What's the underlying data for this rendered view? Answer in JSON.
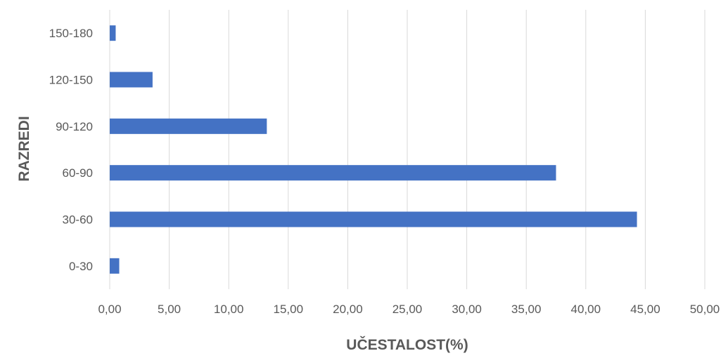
{
  "chart_data": {
    "type": "bar",
    "orientation": "horizontal",
    "title": "",
    "xlabel": "UČESTALOST(%)",
    "ylabel": "RAZREDI",
    "categories": [
      "0-30",
      "30-60",
      "60-90",
      "90-120",
      "120-150",
      "150-180"
    ],
    "values": [
      0.8,
      44.3,
      37.5,
      13.2,
      3.6,
      0.5
    ],
    "xlim": [
      0,
      50
    ],
    "x_ticks": [
      "0,00",
      "5,00",
      "10,00",
      "15,00",
      "20,00",
      "25,00",
      "30,00",
      "35,00",
      "40,00",
      "45,00",
      "50,00"
    ],
    "x_tick_values": [
      0,
      5,
      10,
      15,
      20,
      25,
      30,
      35,
      40,
      45,
      50
    ],
    "grid": "vertical",
    "legend": "none",
    "bar_color": "#4472C4",
    "grid_color": "#D9D9D9",
    "text_color": "#595959"
  }
}
